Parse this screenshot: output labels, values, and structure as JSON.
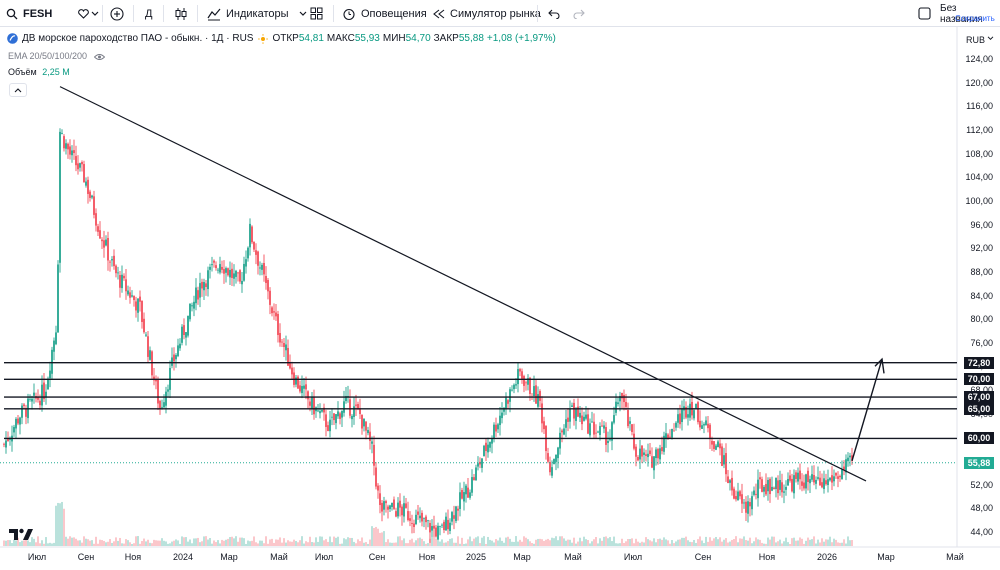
{
  "toolbar": {
    "symbol": "FESH",
    "interval": "Д",
    "indicators": "Индикаторы",
    "alerts": "Оповещения",
    "replay": "Симулятор рынка",
    "layout_name": "Без названия",
    "save": "Сохранить"
  },
  "legend": {
    "title": "ДВ морское пароходство ПАО - обыкн. · 1Д · RUS",
    "open_label": "ОТКР",
    "open": "54,81",
    "high_label": "МАКС",
    "high": "55,93",
    "low_label": "МИН",
    "low": "54,70",
    "close_label": "ЗАКР",
    "close": "55,88",
    "change": "+1,08 (+1,97%)",
    "ema": "EMA 20/50/100/200",
    "volume_label": "Объём",
    "volume": "2,25 M"
  },
  "price_axis": {
    "currency": "RUB",
    "ticks": [
      "124,00",
      "120,00",
      "116,00",
      "112,00",
      "108,00",
      "104,00",
      "100,00",
      "96,00",
      "92,00",
      "88,00",
      "84,00",
      "80,00",
      "76,00",
      "72,00",
      "68,00",
      "64,00",
      "60,00",
      "56,00",
      "52,00",
      "48,00",
      "44,00"
    ],
    "levels": [
      {
        "label": "72,80",
        "value": 72.8
      },
      {
        "label": "70,00",
        "value": 70.0
      },
      {
        "label": "67,00",
        "value": 67.0
      },
      {
        "label": "65,00",
        "value": 65.0
      },
      {
        "label": "60,00",
        "value": 60.0
      }
    ],
    "current": {
      "label": "55,88",
      "value": 55.88
    }
  },
  "time_axis": {
    "labels": [
      "Июл",
      "Сен",
      "Ноя",
      "2024",
      "Мар",
      "Май",
      "Июл",
      "Сен",
      "Ноя",
      "2025",
      "Мар",
      "Май",
      "Июл",
      "Сен",
      "Ноя",
      "2026",
      "Мар",
      "Май"
    ]
  },
  "colors": {
    "up": "#089981",
    "down": "#f23645",
    "level": "#131722",
    "trend": "#131722"
  },
  "chart_data": {
    "type": "candlestick",
    "price_range": [
      44,
      124
    ],
    "approx_close_path": [
      {
        "label": "Июл",
        "value": 63
      },
      {
        "label": "Сен",
        "value": 112
      },
      {
        "label": "Ноя",
        "value": 88
      },
      {
        "label": "2024",
        "value": 80
      },
      {
        "label": "Мар",
        "value": 92
      },
      {
        "label": "Май",
        "value": 88
      },
      {
        "label": "Июл",
        "value": 66
      },
      {
        "label": "Сен",
        "value": 58
      },
      {
        "label": "Ноя",
        "value": 48
      },
      {
        "label": "2025",
        "value": 58
      },
      {
        "label": "Мар",
        "value": 68
      },
      {
        "label": "Май",
        "value": 63
      },
      {
        "label": "Июл",
        "value": 60
      },
      {
        "label": "Сен",
        "value": 58
      },
      {
        "label": "Ноя",
        "value": 51
      },
      {
        "label": "2026",
        "value": 54
      },
      {
        "label": "Мар",
        "value": 55.88
      }
    ]
  }
}
